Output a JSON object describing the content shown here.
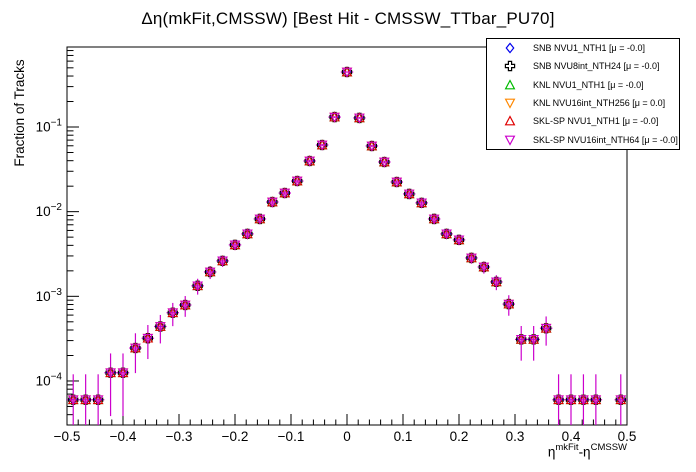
{
  "chart_data": {
    "type": "scatter",
    "title": "Δη(mkFit,CMSSW) [Best Hit - CMSSW_TTbar_PU70]",
    "ylabel": "Fraction of Tracks",
    "xlabel_parts": {
      "base1": "η",
      "sup1": "mkFit",
      "base2": "-η",
      "sup2": "CMSSW"
    },
    "y_scale": "log",
    "grid": false,
    "legend_position": "top-right",
    "x_range": [
      -0.5,
      0.5
    ],
    "y_range": [
      3.02e-05,
      0.881
    ],
    "n_bins": 45,
    "bin_width": 0.0222,
    "x_tick_values": [
      -0.5,
      -0.4,
      -0.3,
      -0.2,
      -0.1,
      0,
      0.1,
      0.2,
      0.3,
      0.4,
      0.5
    ],
    "x_tick_labels": [
      "−0.5",
      "−0.4",
      "−0.3",
      "−0.2",
      "−0.1",
      "0",
      "0.1",
      "0.2",
      "0.3",
      "0.4",
      "0.5"
    ],
    "y_tick_exponents": [
      "−1",
      "−2",
      "−3",
      "−4"
    ],
    "y_tick_values": [
      0.1,
      0.01,
      0.001,
      0.0001
    ],
    "x": [
      -0.4889,
      -0.4667,
      -0.4444,
      -0.4222,
      -0.4,
      -0.3778,
      -0.3556,
      -0.3333,
      -0.3111,
      -0.2889,
      -0.2667,
      -0.2444,
      -0.2222,
      -0.2,
      -0.1778,
      -0.1556,
      -0.1333,
      -0.1111,
      -0.0889,
      -0.0667,
      -0.0444,
      -0.0222,
      0,
      0.0222,
      0.0444,
      0.0667,
      0.0889,
      0.1111,
      0.1333,
      0.1556,
      0.1778,
      0.2,
      0.2222,
      0.2444,
      0.2667,
      0.2889,
      0.3111,
      0.3333,
      0.3556,
      0.3778,
      0.4,
      0.4222,
      0.4444,
      0.4667,
      0.4889
    ],
    "values": [
      6e-05,
      6e-05,
      6e-05,
      0.000125,
      0.000125,
      0.000245,
      0.00032,
      0.00044,
      0.00064,
      0.00079,
      0.00133,
      0.00194,
      0.00262,
      0.00405,
      0.00546,
      0.0082,
      0.013,
      0.0166,
      0.023,
      0.0397,
      0.0613,
      0.131,
      0.446,
      0.128,
      0.0597,
      0.0386,
      0.0224,
      0.0162,
      0.0127,
      0.0082,
      0.00546,
      0.00464,
      0.00284,
      0.00222,
      0.00148,
      0.00081,
      0.00031,
      0.00031,
      0.00042,
      6e-05,
      6e-05,
      6e-05,
      6e-05,
      null,
      6e-05
    ],
    "series_note": "all six series overlap with visually identical values at every bin",
    "poisson_n": 16700,
    "series": [
      {
        "label": "SNB NVU1_NTH1 [μ = -0.0]",
        "marker": "open-diamond",
        "color": "#0000ee"
      },
      {
        "label": "SNB NVU8int_NTH24 [μ = -0.0]",
        "marker": "open-cross",
        "color": "#000000"
      },
      {
        "label": "KNL NVU1_NTH1 [μ = -0.0]",
        "marker": "open-triangle-up",
        "color": "#00bb00"
      },
      {
        "label": "KNL NVU16int_NTH256 [μ = 0.0]",
        "marker": "open-triangle-down",
        "color": "#ff8800"
      },
      {
        "label": "SKL-SP NVU1_NTH1 [μ = -0.0]",
        "marker": "open-triangle-up",
        "color": "#e00000"
      },
      {
        "label": "SKL-SP NVU16int_NTH64 [μ = -0.0]",
        "marker": "open-triangle-down",
        "color": "#cc00cc"
      }
    ],
    "colors": {
      "error_bar": "#cc00cc",
      "frame": "#000000",
      "background": "#ffffff"
    }
  }
}
